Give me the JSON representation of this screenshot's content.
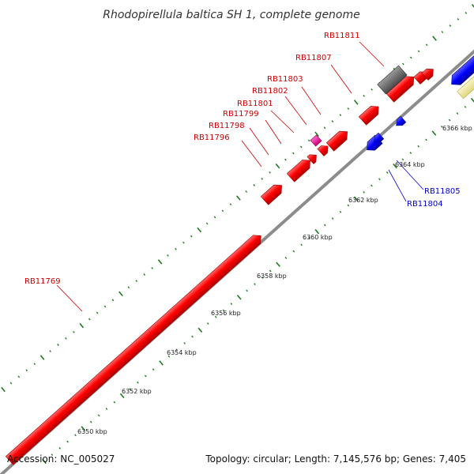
{
  "title": "Rhodopirellula baltica SH 1, complete genome",
  "footer": {
    "accession": "Accession: NC_005027",
    "summary": "Topology: circular; Length: 7,145,576 bp; Genes: 7,405"
  },
  "colors": {
    "forward_gene": "#ff0000",
    "reverse_gene": "#0000ff",
    "rna_gene": "#ee1199",
    "other_feature": "#666666",
    "pale_feature": "#f3eca6",
    "ticks": "#1c7a1c",
    "backbone": "#8c8c8c",
    "label_forward": "#cc0000",
    "label_reverse": "#0000cc"
  },
  "scale_labels": [
    "6350 kbp",
    "6352 kbp",
    "6354 kbp",
    "6356 kbp",
    "6358 kbp",
    "6360 kbp",
    "6362 kbp",
    "6364 kbp",
    "6366 kbp"
  ],
  "gene_labels": {
    "forward": [
      "RB11769",
      "RB11796",
      "RB11798",
      "RB11799",
      "RB11801",
      "RB11802",
      "RB11803",
      "RB11807",
      "RB11811"
    ],
    "reverse": [
      "RB11804",
      "RB11805"
    ]
  }
}
